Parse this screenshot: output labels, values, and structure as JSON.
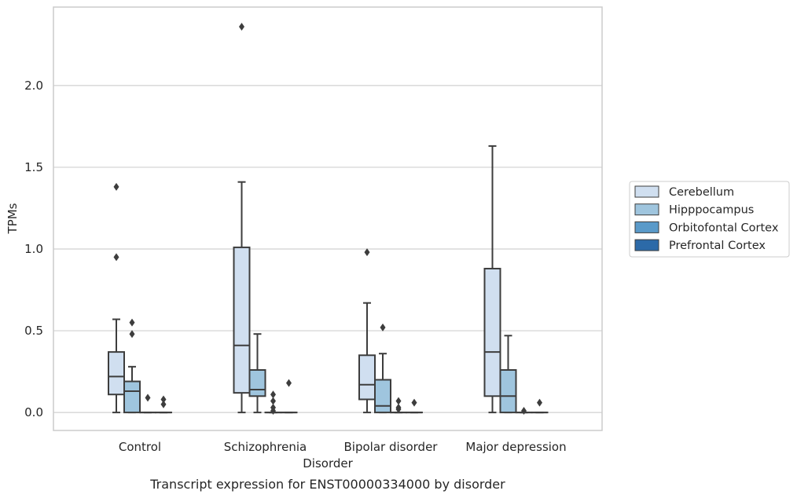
{
  "chart_data": {
    "type": "box",
    "title": "Transcript expression for ENST00000334000 by disorder",
    "xlabel": "Disorder",
    "ylabel": "TPMs",
    "ylim": [
      -0.11,
      2.48
    ],
    "yticks": [
      "0.0",
      "0.5",
      "1.0",
      "1.5",
      "2.0"
    ],
    "ytick_values": [
      0,
      0.5,
      1.0,
      1.5,
      2.0
    ],
    "grid": "horizontal",
    "legend_position": "right",
    "categories": [
      "Control",
      "Schizophrenia",
      "Bipolar disorder",
      "Major depression"
    ],
    "series": [
      {
        "name": "Cerebellum",
        "color": "#d0dff0",
        "boxes": [
          {
            "min": 0.0,
            "q1": 0.11,
            "median": 0.22,
            "q3": 0.37,
            "max": 0.57,
            "outliers": [
              0.95,
              1.38
            ]
          },
          {
            "min": 0.0,
            "q1": 0.12,
            "median": 0.41,
            "q3": 1.01,
            "max": 1.41,
            "outliers": [
              2.36
            ]
          },
          {
            "min": 0.0,
            "q1": 0.08,
            "median": 0.17,
            "q3": 0.35,
            "max": 0.67,
            "outliers": [
              0.98
            ]
          },
          {
            "min": 0.0,
            "q1": 0.1,
            "median": 0.37,
            "q3": 0.88,
            "max": 1.63,
            "outliers": []
          }
        ]
      },
      {
        "name": "Hipppocampus",
        "color": "#9fc5de",
        "boxes": [
          {
            "min": 0.0,
            "q1": 0.0,
            "median": 0.13,
            "q3": 0.19,
            "max": 0.28,
            "outliers": [
              0.48,
              0.55
            ]
          },
          {
            "min": 0.0,
            "q1": 0.1,
            "median": 0.14,
            "q3": 0.26,
            "max": 0.48,
            "outliers": []
          },
          {
            "min": 0.0,
            "q1": 0.0,
            "median": 0.04,
            "q3": 0.2,
            "max": 0.36,
            "outliers": [
              0.52
            ]
          },
          {
            "min": 0.0,
            "q1": 0.0,
            "median": 0.1,
            "q3": 0.26,
            "max": 0.47,
            "outliers": []
          }
        ]
      },
      {
        "name": "Orbitofontal Cortex",
        "color": "#5a9ac9",
        "boxes": [
          {
            "min": 0.0,
            "q1": 0.0,
            "median": 0.0,
            "q3": 0.0,
            "max": 0.0,
            "outliers": [
              0.09
            ]
          },
          {
            "min": 0.0,
            "q1": 0.0,
            "median": 0.0,
            "q3": 0.0,
            "max": 0.0,
            "outliers": [
              0.01,
              0.03,
              0.07,
              0.11
            ]
          },
          {
            "min": 0.0,
            "q1": 0.0,
            "median": 0.0,
            "q3": 0.0,
            "max": 0.0,
            "outliers": [
              0.02,
              0.03,
              0.07
            ]
          },
          {
            "min": 0.0,
            "q1": 0.0,
            "median": 0.0,
            "q3": 0.0,
            "max": 0.0,
            "outliers": [
              0.01
            ]
          }
        ]
      },
      {
        "name": "Prefrontal Cortex",
        "color": "#2c6aa8",
        "boxes": [
          {
            "min": 0.0,
            "q1": 0.0,
            "median": 0.0,
            "q3": 0.0,
            "max": 0.0,
            "outliers": [
              0.05,
              0.08
            ]
          },
          {
            "min": 0.0,
            "q1": 0.0,
            "median": 0.0,
            "q3": 0.0,
            "max": 0.0,
            "outliers": [
              0.18
            ]
          },
          {
            "min": 0.0,
            "q1": 0.0,
            "median": 0.0,
            "q3": 0.0,
            "max": 0.0,
            "outliers": [
              0.06
            ]
          },
          {
            "min": 0.0,
            "q1": 0.0,
            "median": 0.0,
            "q3": 0.0,
            "max": 0.0,
            "outliers": [
              0.06
            ]
          }
        ]
      }
    ]
  }
}
